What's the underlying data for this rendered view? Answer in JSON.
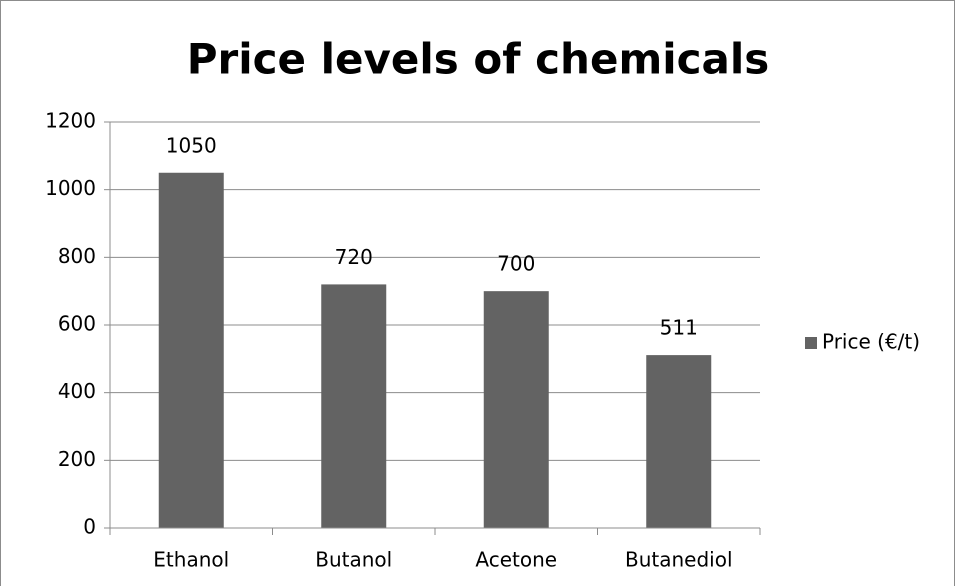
{
  "chart_data": {
    "type": "bar",
    "title": "Price levels of chemicals",
    "categories": [
      "Ethanol",
      "Butanol",
      "Acetone",
      "Butanediol"
    ],
    "series": [
      {
        "name": "Price (€/t)",
        "color": "#636363",
        "values": [
          1050,
          720,
          700,
          511
        ]
      }
    ],
    "ylim": [
      0,
      1200
    ],
    "yticks": [
      0,
      200,
      400,
      600,
      800,
      1000,
      1200
    ],
    "grid": true,
    "legend": "right"
  }
}
